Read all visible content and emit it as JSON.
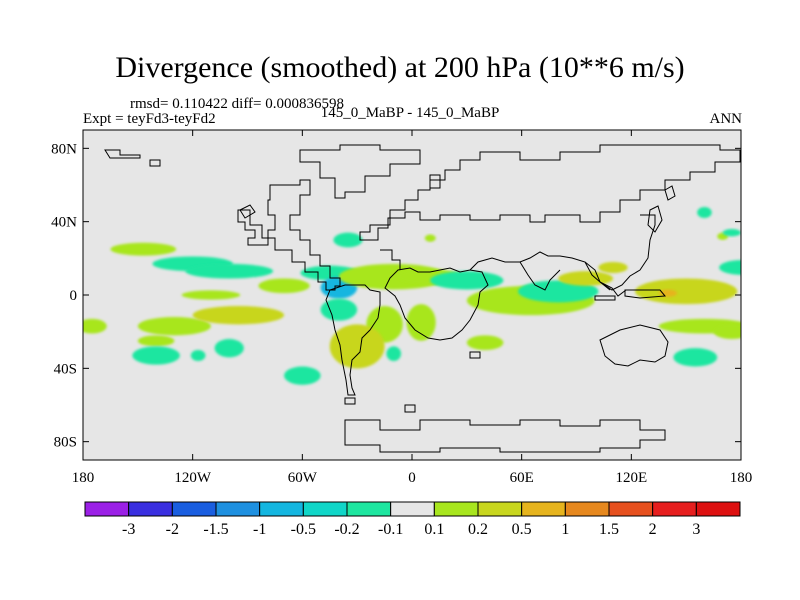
{
  "chart_data": {
    "type": "heatmap",
    "title": "Divergence (smoothed) at 200 hPa (10**6 m/s)",
    "stats_text": "rmsd= 0.110422 diff= 0.000836598",
    "left_label": "Expt = teyFd3-teyFd2",
    "center_label": "145_0_MaBP - 145_0_MaBP",
    "right_label": "ANN",
    "x_axis": {
      "range": [
        -180,
        180
      ],
      "ticks": [
        -180,
        -120,
        -60,
        0,
        60,
        120,
        180
      ],
      "tick_labels": [
        "180",
        "120W",
        "60W",
        "0",
        "60E",
        "120E",
        "180"
      ]
    },
    "y_axis": {
      "range": [
        -90,
        90
      ],
      "ticks": [
        80,
        40,
        0,
        -40,
        -80
      ],
      "tick_labels": [
        "80N",
        "40N",
        "0",
        "40S",
        "80S"
      ]
    },
    "background_color": "#e6e6e6",
    "colorbar": {
      "labels": [
        "-3",
        "-2",
        "-1.5",
        "-1",
        "-0.5",
        "-0.2",
        "-0.1",
        "0.1",
        "0.2",
        "0.5",
        "1",
        "1.5",
        "2",
        "3"
      ],
      "colors": [
        "#9b20e6",
        "#3a2fe0",
        "#1a5ee0",
        "#1e90e0",
        "#14b6e0",
        "#10d6c8",
        "#1ee6a0",
        "#e6e6e6",
        "#a8e61e",
        "#c8d61e",
        "#e6b41e",
        "#e6881e",
        "#e6501e",
        "#e61e1e",
        "#dd1010"
      ]
    },
    "anomalies": [
      {
        "lon": -147,
        "lat": 25,
        "rx": 18,
        "ry": 3.5,
        "level": "0.2",
        "color": "#a8e61e"
      },
      {
        "lon": -120,
        "lat": 17,
        "rx": 22,
        "ry": 4,
        "level": "-0.2",
        "color": "#1ee6a0"
      },
      {
        "lon": -100,
        "lat": 13,
        "rx": 24,
        "ry": 4,
        "level": "-0.1",
        "color": "#1ee6a0"
      },
      {
        "lon": -130,
        "lat": -17,
        "rx": 20,
        "ry": 5,
        "level": "0.2",
        "color": "#a8e61e"
      },
      {
        "lon": -175,
        "lat": -17,
        "rx": 8,
        "ry": 4,
        "level": "0.2",
        "color": "#a8e61e"
      },
      {
        "lon": -95,
        "lat": -11,
        "rx": 25,
        "ry": 5,
        "level": "0.5",
        "color": "#c8d61e"
      },
      {
        "lon": -110,
        "lat": 0,
        "rx": 16,
        "ry": 2.5,
        "level": "0.2",
        "color": "#a8e61e"
      },
      {
        "lon": -70,
        "lat": 5,
        "rx": 14,
        "ry": 4,
        "level": "0.2",
        "color": "#a8e61e"
      },
      {
        "lon": -140,
        "lat": -25,
        "rx": 10,
        "ry": 3,
        "level": "0.2",
        "color": "#a8e61e"
      },
      {
        "lon": -100,
        "lat": -29,
        "rx": 8,
        "ry": 5,
        "level": "-0.2",
        "color": "#1ee6a0"
      },
      {
        "lon": -140,
        "lat": -33,
        "rx": 13,
        "ry": 5,
        "level": "-0.2",
        "color": "#1ee6a0"
      },
      {
        "lon": -60,
        "lat": -44,
        "rx": 10,
        "ry": 5,
        "level": "-0.2",
        "color": "#1ee6a0"
      },
      {
        "lon": -117,
        "lat": -33,
        "rx": 4,
        "ry": 3,
        "level": "-0.2",
        "color": "#1ee6a0"
      },
      {
        "lon": -45,
        "lat": 12,
        "rx": 16,
        "ry": 4,
        "level": "-0.2",
        "color": "#1ee6a0"
      },
      {
        "lon": -40,
        "lat": 4,
        "rx": 10,
        "ry": 6,
        "level": "-0.5",
        "color": "#14b6e0"
      },
      {
        "lon": -40,
        "lat": -8,
        "rx": 10,
        "ry": 6,
        "level": "-0.2",
        "color": "#1ee6a0"
      },
      {
        "lon": -15,
        "lat": -16,
        "rx": 10,
        "ry": 10,
        "level": "0.2",
        "color": "#a8e61e"
      },
      {
        "lon": -30,
        "lat": -28,
        "rx": 15,
        "ry": 12,
        "level": "0.5",
        "color": "#c8d61e"
      },
      {
        "lon": -10,
        "lat": 10,
        "rx": 30,
        "ry": 7,
        "level": "0.2",
        "color": "#a8e61e"
      },
      {
        "lon": 10,
        "lat": 10,
        "rx": 18,
        "ry": 4,
        "level": "0.2",
        "color": "#a8e61e"
      },
      {
        "lon": 30,
        "lat": 8,
        "rx": 20,
        "ry": 5,
        "level": "-0.2",
        "color": "#1ee6a0"
      },
      {
        "lon": 5,
        "lat": -15,
        "rx": 8,
        "ry": 10,
        "level": "0.2",
        "color": "#a8e61e"
      },
      {
        "lon": -10,
        "lat": -32,
        "rx": 4,
        "ry": 4,
        "level": "-0.2",
        "color": "#1ee6a0"
      },
      {
        "lon": 40,
        "lat": -26,
        "rx": 10,
        "ry": 4,
        "level": "0.2",
        "color": "#a8e61e"
      },
      {
        "lon": 65,
        "lat": -3,
        "rx": 35,
        "ry": 8,
        "level": "0.2",
        "color": "#a8e61e"
      },
      {
        "lon": 80,
        "lat": 2,
        "rx": 22,
        "ry": 6,
        "level": "-0.2",
        "color": "#1ee6a0"
      },
      {
        "lon": 95,
        "lat": 9,
        "rx": 15,
        "ry": 4,
        "level": "0.5",
        "color": "#c8d61e"
      },
      {
        "lon": 110,
        "lat": 15,
        "rx": 8,
        "ry": 3,
        "level": "0.5",
        "color": "#c8d61e"
      },
      {
        "lon": 150,
        "lat": 2,
        "rx": 28,
        "ry": 7,
        "level": "0.5",
        "color": "#c8d61e"
      },
      {
        "lon": 140,
        "lat": 1,
        "rx": 5,
        "ry": 2,
        "level": "1",
        "color": "#e6b41e"
      },
      {
        "lon": 180,
        "lat": 15,
        "rx": 12,
        "ry": 4,
        "level": "-0.2",
        "color": "#1ee6a0"
      },
      {
        "lon": 160,
        "lat": -17,
        "rx": 25,
        "ry": 4,
        "level": "0.2",
        "color": "#a8e61e"
      },
      {
        "lon": 175,
        "lat": -20,
        "rx": 10,
        "ry": 4,
        "level": "0.2",
        "color": "#a8e61e"
      },
      {
        "lon": 155,
        "lat": -34,
        "rx": 12,
        "ry": 5,
        "level": "-0.2",
        "color": "#1ee6a0"
      },
      {
        "lon": 160,
        "lat": 45,
        "rx": 4,
        "ry": 3,
        "level": "-0.2",
        "color": "#1ee6a0"
      },
      {
        "lon": 170,
        "lat": 32,
        "rx": 3,
        "ry": 2,
        "level": "0.2",
        "color": "#a8e61e"
      },
      {
        "lon": -35,
        "lat": 30,
        "rx": 8,
        "ry": 4,
        "level": "-0.2",
        "color": "#1ee6a0"
      },
      {
        "lon": 10,
        "lat": 31,
        "rx": 3,
        "ry": 2,
        "level": "0.2",
        "color": "#a8e61e"
      },
      {
        "lon": 175,
        "lat": 34,
        "rx": 5,
        "ry": 2,
        "level": "-0.2",
        "color": "#1ee6a0"
      }
    ]
  }
}
